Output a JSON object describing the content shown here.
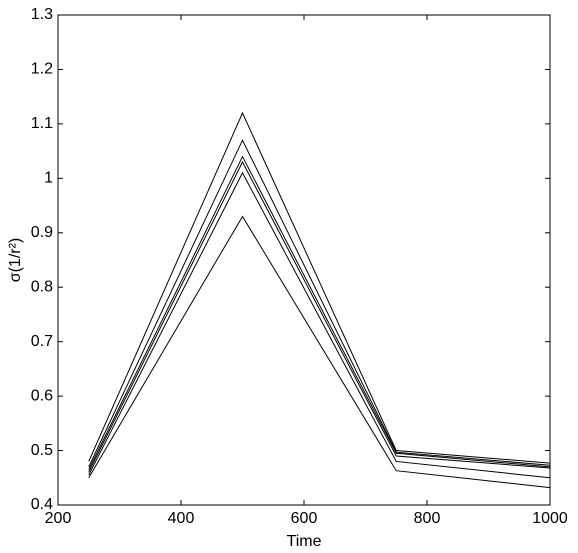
{
  "chart_data": {
    "type": "line",
    "xlabel": "Time",
    "ylabel": "σ(1/r²)",
    "x": [
      250,
      500,
      750,
      1000
    ],
    "series": [
      {
        "color": "#000000",
        "values": [
          0.48,
          1.12,
          0.5,
          0.477
        ]
      },
      {
        "color": "#000000",
        "values": [
          0.47,
          1.07,
          0.497,
          0.473
        ]
      },
      {
        "color": "#000000",
        "values": [
          0.465,
          1.04,
          0.495,
          0.47
        ]
      },
      {
        "color": "#000000",
        "values": [
          0.46,
          1.03,
          0.49,
          0.468
        ]
      },
      {
        "color": "#000000",
        "values": [
          0.455,
          1.01,
          0.48,
          0.45
        ]
      },
      {
        "color": "#000000",
        "values": [
          0.45,
          0.93,
          0.463,
          0.432
        ]
      }
    ],
    "xlim": [
      200,
      1000
    ],
    "xticks": [
      200,
      400,
      600,
      800,
      1000
    ],
    "ylim": [
      0.4,
      1.3
    ],
    "yticks": [
      0.4,
      0.5,
      0.6,
      0.7,
      0.8,
      0.9,
      1,
      1.1,
      1.2,
      1.3
    ],
    "grid": false
  }
}
